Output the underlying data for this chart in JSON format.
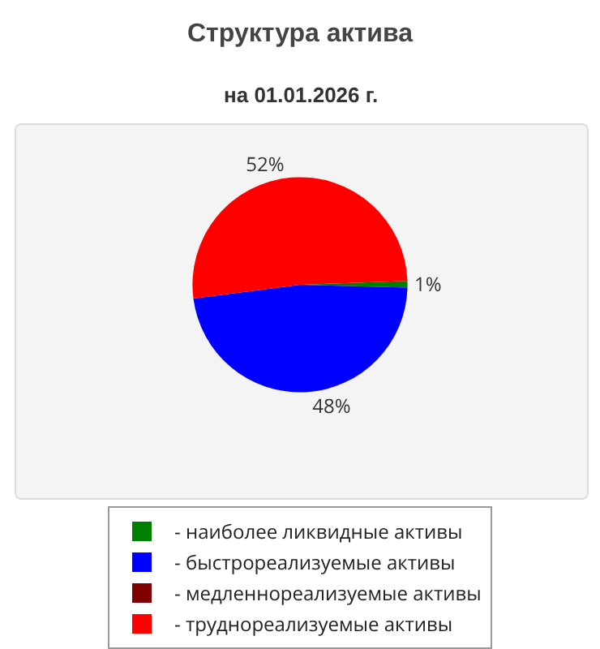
{
  "chart_data": {
    "type": "pie",
    "title": "Структура актива",
    "subtitle": "на 01.01.2026 г.",
    "categories": [
      "- наиболее ликвидные активы",
      "- быстрореализуемые активы",
      "- медленнореализуемые активы",
      "- труднореализуемые активы"
    ],
    "values": [
      1,
      48,
      0,
      52
    ],
    "colors": [
      "#008000",
      "#0000ff",
      "#800000",
      "#ff0000"
    ],
    "value_labels": [
      "1%",
      "48%",
      null,
      "52%"
    ],
    "legend": "bottom"
  }
}
